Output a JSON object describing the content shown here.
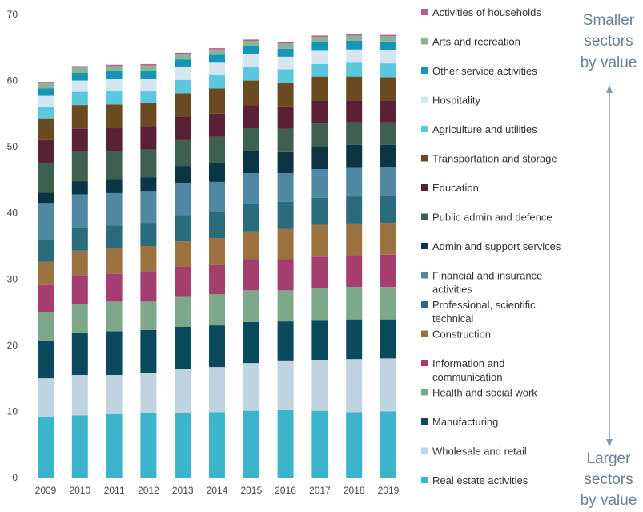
{
  "chart_data": {
    "type": "bar",
    "stacked": true,
    "title": "",
    "xlabel": "",
    "ylabel": "",
    "ylim": [
      0,
      70
    ],
    "yticks": [
      0,
      10,
      20,
      30,
      40,
      50,
      60,
      70
    ],
    "grid": false,
    "legend_position": "right",
    "categories": [
      "2009",
      "2010",
      "2011",
      "2012",
      "2013",
      "2014",
      "2015",
      "2016",
      "2017",
      "2018",
      "2019"
    ],
    "series": [
      {
        "name": "Real estate activities",
        "color": "#3cb4cc",
        "values": [
          9.2,
          9.4,
          9.6,
          9.7,
          9.8,
          9.9,
          10.1,
          10.2,
          10.1,
          9.9,
          10.0
        ]
      },
      {
        "name": "Wholesale and retail",
        "color": "#bfd4e0",
        "values": [
          5.8,
          6.1,
          5.9,
          6.1,
          6.6,
          6.8,
          7.2,
          7.5,
          7.7,
          8.0,
          8.0
        ]
      },
      {
        "name": "Manufacturing",
        "color": "#0b4a5c",
        "values": [
          5.7,
          6.3,
          6.6,
          6.5,
          6.4,
          6.3,
          6.2,
          5.9,
          6.0,
          6.0,
          5.9
        ]
      },
      {
        "name": "Health and social work",
        "color": "#7da98a",
        "values": [
          4.3,
          4.4,
          4.5,
          4.3,
          4.5,
          4.7,
          4.8,
          4.7,
          4.9,
          4.9,
          4.9
        ]
      },
      {
        "name": "Information and communication",
        "color": "#a43e6e",
        "values": [
          4.1,
          4.4,
          4.2,
          4.6,
          4.6,
          4.4,
          4.7,
          4.7,
          4.7,
          4.8,
          4.9
        ]
      },
      {
        "name": "Construction",
        "color": "#9c7240",
        "values": [
          3.5,
          3.7,
          3.9,
          3.8,
          3.8,
          4.1,
          4.2,
          4.6,
          4.8,
          4.8,
          4.8
        ]
      },
      {
        "name": "Professional, scientific, technical",
        "color": "#2a6b7c",
        "values": [
          3.3,
          3.4,
          3.4,
          3.5,
          4.0,
          4.1,
          4.1,
          4.1,
          4.1,
          4.1,
          4.1
        ]
      },
      {
        "name": "Financial and insurance activities",
        "color": "#5088a4",
        "values": [
          5.6,
          5.1,
          4.9,
          4.7,
          4.8,
          4.4,
          4.7,
          4.3,
          4.3,
          4.3,
          4.3
        ]
      },
      {
        "name": "Admin and support services",
        "color": "#0b3445",
        "values": [
          1.6,
          2.0,
          2.0,
          2.2,
          2.6,
          2.9,
          3.3,
          3.2,
          3.5,
          3.5,
          3.4
        ]
      },
      {
        "name": "Public admin and defence",
        "color": "#3e6050",
        "values": [
          4.5,
          4.4,
          4.3,
          4.2,
          3.9,
          3.9,
          3.5,
          3.5,
          3.4,
          3.4,
          3.4
        ]
      },
      {
        "name": "Education",
        "color": "#5a2035",
        "values": [
          3.4,
          3.5,
          3.5,
          3.5,
          3.5,
          3.5,
          3.5,
          3.4,
          3.5,
          3.3,
          3.3
        ]
      },
      {
        "name": "Transportation and storage",
        "color": "#6a4a20",
        "values": [
          3.3,
          3.6,
          3.6,
          3.6,
          3.6,
          3.8,
          3.7,
          3.6,
          3.6,
          3.6,
          3.5
        ]
      },
      {
        "name": "Agriculture and utilities",
        "color": "#5cc8e0",
        "values": [
          1.8,
          2.0,
          2.0,
          1.8,
          2.0,
          2.0,
          2.1,
          2.0,
          1.9,
          2.1,
          2.1
        ]
      },
      {
        "name": "Hospitality",
        "color": "#d5e6f0",
        "values": [
          1.6,
          1.7,
          1.8,
          1.8,
          1.9,
          1.9,
          1.9,
          1.9,
          2.0,
          2.0,
          2.0
        ]
      },
      {
        "name": "Other service activities",
        "color": "#1596b8",
        "values": [
          1.1,
          1.2,
          1.2,
          1.2,
          1.2,
          1.2,
          1.2,
          1.2,
          1.3,
          1.3,
          1.3
        ]
      },
      {
        "name": "Arts and recreation",
        "color": "#8ab496",
        "values": [
          0.8,
          0.8,
          0.8,
          0.8,
          0.8,
          0.8,
          0.8,
          0.8,
          0.8,
          0.8,
          0.8
        ]
      },
      {
        "name": "Activities of households",
        "color": "#c05a8c",
        "values": [
          0.2,
          0.2,
          0.2,
          0.2,
          0.2,
          0.2,
          0.2,
          0.2,
          0.2,
          0.2,
          0.2
        ]
      }
    ],
    "annotations": {
      "top": [
        "Smaller",
        "sectors",
        "by value"
      ],
      "bottom": [
        "Larger",
        "sectors",
        "by value"
      ],
      "arrow_color": "#7f9bb0"
    }
  }
}
